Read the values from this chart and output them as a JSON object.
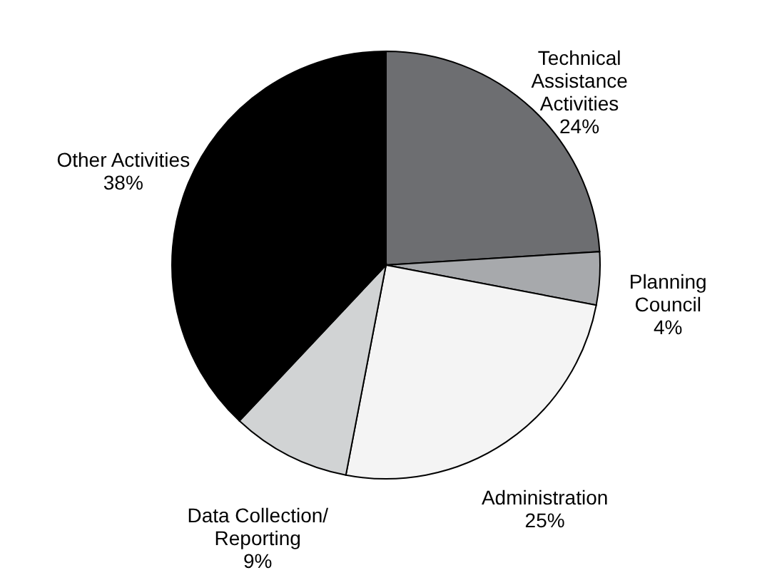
{
  "chart_data": {
    "type": "pie",
    "categories": [
      "Technical\nAssistance\nActivities",
      "Planning\nCouncil",
      "Administration",
      "Data Collection/\nReporting",
      "Other Activities"
    ],
    "values": [
      24,
      4,
      25,
      9,
      38
    ],
    "colors": [
      "#6d6e71",
      "#a7a9ac",
      "#f4f4f4",
      "#d1d3d4",
      "#000000"
    ],
    "value_labels": [
      "24%",
      "4%",
      "25%",
      "9%",
      "38%"
    ],
    "legend": false
  }
}
